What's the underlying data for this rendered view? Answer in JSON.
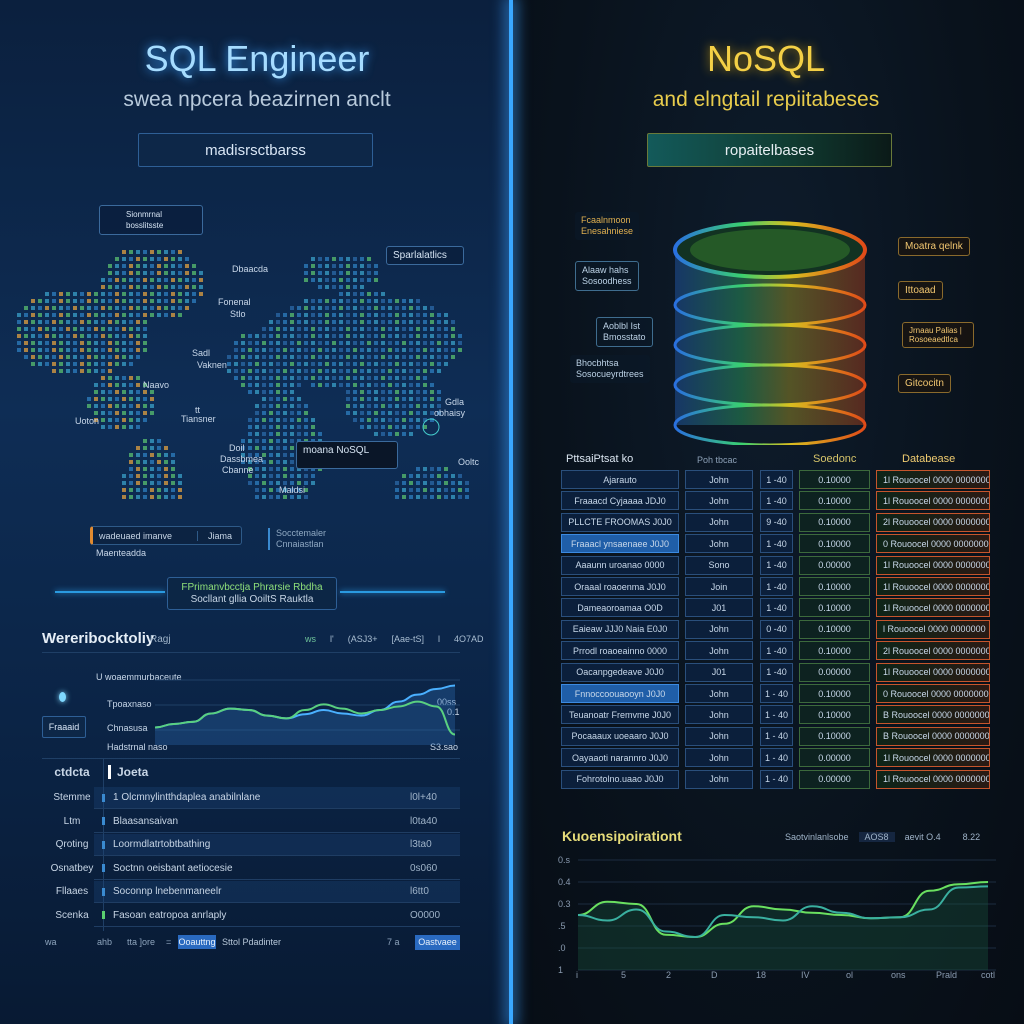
{
  "left": {
    "title": "SQL Engineer",
    "subtitle": "swea npcera beazirnen anclt",
    "button": "madisrsctbarss",
    "map": {
      "info_box": [
        "Sionmrnal",
        "bosslitsste"
      ],
      "callout_top_right": "Sparlalatlics",
      "callout_center": "moana NoSQL",
      "labels": [
        "Dbaacda",
        "Fonenal",
        "Stlo",
        "Sadl",
        "Vaknen",
        "Naavo",
        "Uoton",
        "tt",
        "Tiansner",
        "Doil",
        "Dassbmea",
        "Cbanne",
        "Maldsi",
        "Gdla",
        "obhaisy",
        "Ooltc"
      ]
    },
    "status_bar": {
      "field": "wadeuaed imanve",
      "value": "Jiama",
      "note": "Maenteadda",
      "side": [
        "Socctemaler",
        "Cnnaiastlan"
      ]
    },
    "banner": {
      "line1": "FPrimanvbcctja Phrarsie Rbdha",
      "line2": "Socllant gllia OoiltS Rauktla"
    },
    "chart": {
      "title": "Wereribocktoliy",
      "title_tag": "Ragj",
      "header_stats": [
        "ws",
        "l'",
        "(ASJ3+",
        "[Aae-tS]",
        "l",
        "4O7AD"
      ],
      "side_button": "Fraaaid",
      "legend": [
        "U woaemmurbaceute",
        "Tpoaxnaso",
        "Chnasusa",
        "Hadstrnal naso"
      ],
      "end_labels": [
        "00ss",
        "0.1",
        "S3.sao"
      ],
      "series": [
        {
          "values": [
            0.25,
            0.3,
            0.33,
            0.45,
            0.52,
            0.5,
            0.42,
            0.38,
            0.44,
            0.5,
            0.45,
            0.42,
            0.5,
            0.62,
            0.72,
            0.8,
            0.85
          ]
        },
        {
          "values": [
            0.25,
            0.3,
            0.33,
            0.45,
            0.52,
            0.5,
            0.42,
            0.38,
            0.5,
            0.58,
            0.52,
            0.45,
            0.5,
            0.55,
            0.62,
            0.55,
            0.15
          ]
        }
      ]
    },
    "table": {
      "header": [
        "ctdcta",
        "Joeta"
      ],
      "rows": [
        {
          "label": "Stemme",
          "desc": "1 Olcmnylintthdaplea anabilnlane",
          "value": "l0l+40"
        },
        {
          "label": "Ltm",
          "desc": "Blaasansaivan",
          "value": "l0ta40"
        },
        {
          "label": "Qroting",
          "desc": "Loormdlatrtobtbathing",
          "value": "l3ta0"
        },
        {
          "label": "Osnatbey",
          "desc": "Soctnn oeisbant aetiocesie",
          "value": "0s060"
        },
        {
          "label": "Fllaaes",
          "desc": "Soconnp lnebenmaneelr",
          "value": "l6tt0"
        },
        {
          "label": "Scenka",
          "desc": "Fasoan eatropoa anrlaply",
          "value": "O0000"
        }
      ]
    },
    "footer": {
      "items": [
        "wa",
        "ahb",
        "tta ]ore",
        "="
      ],
      "active": "Ooauttng",
      "after": "Sttol  Pdadinter",
      "right_num": "7 a",
      "right_btn": "Oastvaee"
    }
  },
  "right": {
    "title": "NoSQL",
    "subtitle": "and elngtail repiitabeses",
    "button": "ropaitelbases",
    "left_labels": [
      [
        "Fcaalnmoon",
        "Enesahniese"
      ],
      [
        "Alaaw hahs",
        "Sosoodhess"
      ],
      [
        "Aoblbl Ist",
        "Bmosstato"
      ],
      [
        "Bhocbhtsa",
        "Sosocueyrdtrees"
      ]
    ],
    "right_labels": [
      "Moatra qelnk",
      "Ittoaad",
      "Jrnaau Palias | Rosoeaedtlca",
      "Gitcocitn"
    ],
    "table": {
      "headers": [
        "PttsaiPtsat ko",
        "Poh tbcac",
        "",
        "Soedonc",
        "Databease"
      ],
      "rows": [
        [
          "Ajarauto",
          "John",
          "1 -40",
          "0.10000",
          "1l  Rouoocel 0000 0000000"
        ],
        [
          "Fraaacd Cyjaaaa  JDJ0",
          "John",
          "1 -40",
          "0.10000",
          "1l  Rouoocel 0000 0000000"
        ],
        [
          "PLLCTE FROOMAS  J0J0",
          "John",
          "9 -40",
          "0.10000",
          "2l  Rouoocel 0000 0000000"
        ],
        [
          "Fraaacl ynsaenaee  J0J0",
          "John",
          "1 -40",
          "0.10000",
          "0  Rouoocel 0000 0000000"
        ],
        [
          "Aaaunn uroanao  0000",
          "Sono",
          "1 -40",
          "0.00000",
          "1l  Rouoocel 0000 0000000"
        ],
        [
          "Oraaal roaoenma  J0J0",
          "Join",
          "1 -40",
          "0.10000",
          "1l  Rouoocel 0000 0000000"
        ],
        [
          "Dameaoroamaa  O0D",
          "J01",
          "1 -40",
          "0.10000",
          "1l  Rouoocel 0000 0000000"
        ],
        [
          "Eaieaw JJJ0 Naia  E0J0",
          "John",
          "0 -40",
          "0.10000",
          "l  Rouoocel 0000 0000000"
        ],
        [
          "Prrodl roaoeainno  0000",
          "John",
          "1 -40",
          "0.10000",
          "2l  Rouoocel 0000 0000000"
        ],
        [
          "Oacanpgedeave  J0J0",
          "J01",
          "1 -40",
          "0.00000",
          "1l  Rouoocel 0000 0000000"
        ],
        [
          "Fnnoccoouaooyn  J0J0",
          "John",
          "1 - 40",
          "0.10000",
          "0  Rouoocel 0000 0000000"
        ],
        [
          "Teuanoatr Fremvme  J0J0",
          "John",
          "1 - 40",
          "0.10000",
          "B  Rouoocel 0000 0000000"
        ],
        [
          "Pocaaaux uoeaaro  J0J0",
          "John",
          "1 - 40",
          "0.10000",
          "B  Rouoocel 0000 0000000"
        ],
        [
          "Oayaaoti narannro  J0J0",
          "John",
          "1 - 40",
          "0.00000",
          "1l  Rouoocel 0000 0000000"
        ],
        [
          "Fohrotolno.uaao  J0J0",
          "John",
          "1 - 40",
          "0.00000",
          "1l  Rouoocel 0000 0000000"
        ]
      ],
      "selected_rows": [
        3,
        10
      ]
    },
    "chart": {
      "title": "Kuoensipoirationt",
      "header": [
        "Saotvinlanlsobe",
        "AOS8",
        "aevit O.4",
        "8.22"
      ],
      "y_ticks": [
        "0.s",
        "0.4",
        "0.3",
        ".5",
        ".0",
        "1"
      ],
      "x_ticks": [
        "i",
        "5",
        "2",
        "D",
        "18",
        "IV",
        "ol",
        "ons",
        "Prald",
        "cotl"
      ],
      "series": [
        {
          "values": [
            0.5,
            0.62,
            0.6,
            0.32,
            0.3,
            0.42,
            0.58,
            0.55,
            0.52,
            0.5,
            0.47,
            0.48,
            0.72,
            0.78,
            0.8
          ]
        },
        {
          "values": [
            0.5,
            0.45,
            0.55,
            0.35,
            0.3,
            0.5,
            0.48,
            0.45,
            0.58,
            0.52,
            0.47,
            0.48,
            0.55,
            0.75,
            0.76
          ]
        }
      ]
    }
  }
}
